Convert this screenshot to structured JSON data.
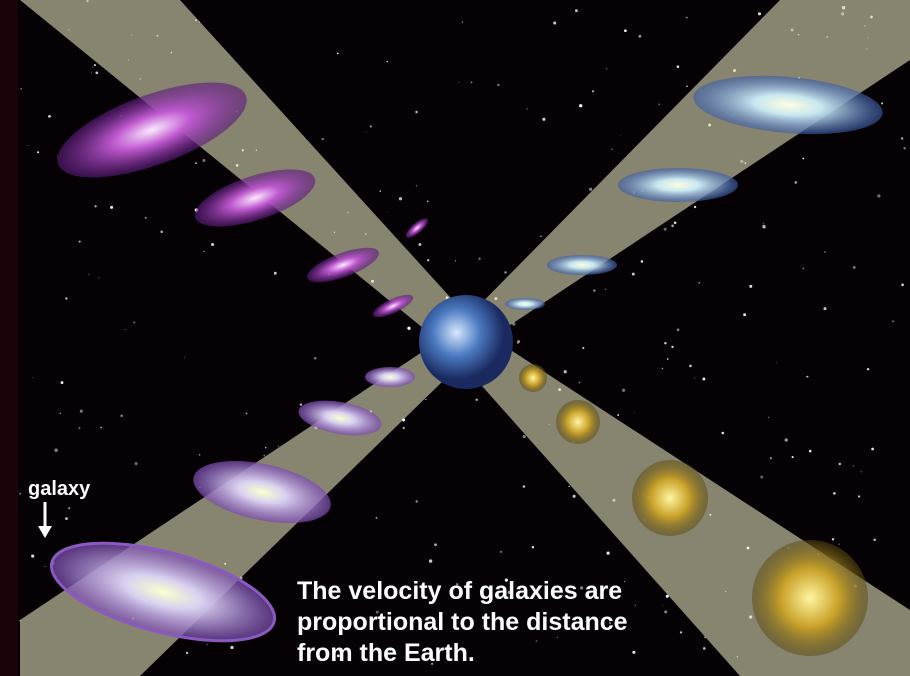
{
  "label": "galaxy",
  "caption": [
    "The velocity of galaxies are",
    "proportional to the distance",
    "from the Earth."
  ]
}
